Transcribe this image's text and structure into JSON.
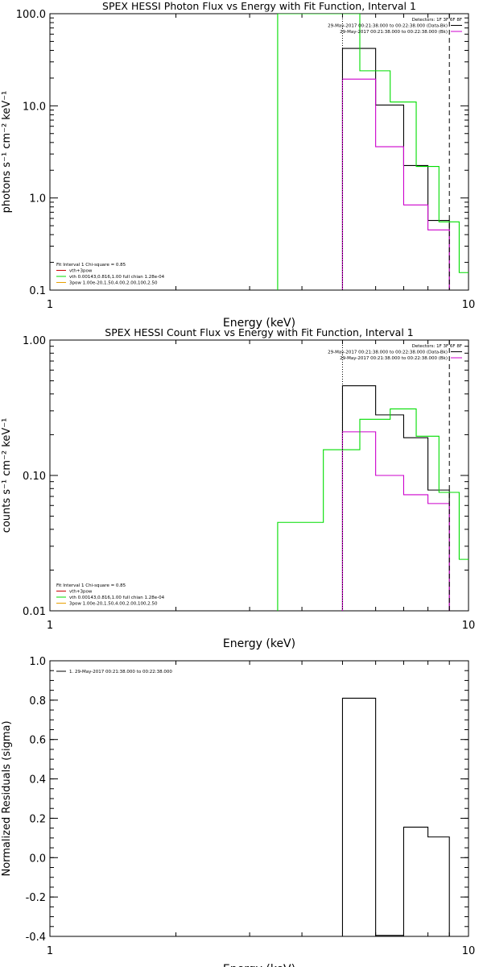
{
  "colors": {
    "axis": "#000000",
    "black": "#000000",
    "green": "#00dd00",
    "magenta": "#cc00cc",
    "orange": "#e8a000",
    "red": "#cc0000"
  },
  "chart_data": [
    {
      "type": "line",
      "title": "SPEX HESSI Photon Flux vs Energy with Fit Function, Interval 1",
      "xlabel": "Energy (keV)",
      "ylabel": "photons s⁻¹ cm⁻² keV⁻¹",
      "xscale": "log",
      "yscale": "log",
      "xlim": [
        1,
        10
      ],
      "ylim": [
        0.1,
        100
      ],
      "xticks": [
        {
          "v": 1,
          "label": "1"
        },
        {
          "v": 10,
          "label": "10"
        }
      ],
      "yticks": [
        {
          "v": 0.1,
          "label": "0.1"
        },
        {
          "v": 1,
          "label": "1.0"
        },
        {
          "v": 10,
          "label": "10.0"
        },
        {
          "v": 100,
          "label": "100.0"
        }
      ],
      "vlines": [
        {
          "x": 5.0,
          "style": "dotted",
          "color": "black"
        },
        {
          "x": 9.0,
          "style": "dashed",
          "color": "black"
        }
      ],
      "legend_right": [
        {
          "text": "Detectors: 1F 3F 6F 8F",
          "color": "black",
          "line": false
        },
        {
          "text": "29-May-2017 00:21:38.000 to 00:22:38.000 (Data-Bk)",
          "color": "black",
          "line": true
        },
        {
          "text": "29-May-2017 00:21:38.000 to 00:22:38.000 (Bk)",
          "color": "magenta",
          "line": true
        }
      ],
      "legend_left": [
        {
          "text": "Fit Interval 1    Chi-square = 0.85",
          "color": "black",
          "line": false
        },
        {
          "text": "vth+3pow",
          "color": "red",
          "line": true
        },
        {
          "text": "vth 0.00143,0.816,1.00   full chian 1.28e-04",
          "color": "green",
          "line": true
        },
        {
          "text": "3pow 1.00e-20,1.50,4.00,2.00,100,2.50",
          "color": "orange",
          "line": true
        }
      ],
      "series": [
        {
          "name": "Data-Bk",
          "color": "black",
          "edges": [
            5.0,
            5.5,
            6.0,
            6.5,
            7.0,
            7.5,
            8.0,
            8.5,
            9.0
          ],
          "values": [
            42,
            42,
            10.2,
            10.2,
            2.25,
            2.25,
            0.57,
            0.57
          ]
        },
        {
          "name": "Bk",
          "color": "magenta",
          "edges": [
            5.0,
            5.5,
            6.0,
            6.5,
            7.0,
            7.5,
            8.0,
            8.5,
            9.0
          ],
          "values": [
            19.5,
            19.5,
            3.6,
            3.6,
            0.84,
            0.84,
            0.45,
            0.45
          ]
        },
        {
          "name": "vth",
          "color": "green",
          "edges": [
            3.5,
            4.0,
            4.5,
            5.0,
            5.5,
            6.0,
            6.5,
            7.0,
            7.5,
            8.0,
            8.5,
            9.0,
            9.5,
            10.0
          ],
          "values": [
            100,
            100,
            100,
            100,
            24,
            24,
            11,
            11,
            2.2,
            2.2,
            0.55,
            0.55,
            0.155,
            0.155
          ]
        }
      ]
    },
    {
      "type": "line",
      "title": "SPEX HESSI Count Flux vs Energy with Fit Function, Interval 1",
      "xlabel": "Energy (keV)",
      "ylabel": "counts s⁻¹ cm⁻² keV⁻¹",
      "xscale": "log",
      "yscale": "log",
      "xlim": [
        1,
        10
      ],
      "ylim": [
        0.01,
        1
      ],
      "xticks": [
        {
          "v": 1,
          "label": "1"
        },
        {
          "v": 10,
          "label": "10"
        }
      ],
      "yticks": [
        {
          "v": 0.01,
          "label": "0.01"
        },
        {
          "v": 0.1,
          "label": "0.10"
        },
        {
          "v": 1,
          "label": "1.00"
        }
      ],
      "vlines": [
        {
          "x": 5.0,
          "style": "dotted",
          "color": "black"
        },
        {
          "x": 9.0,
          "style": "dashed",
          "color": "black"
        }
      ],
      "legend_right": [
        {
          "text": "Detectors: 1F 3F 6F 8F",
          "color": "black",
          "line": false
        },
        {
          "text": "29-May-2017 00:21:38.000 to 00:22:38.000 (Data-Bk)",
          "color": "black",
          "line": true
        },
        {
          "text": "29-May-2017 00:21:38.000 to 00:22:38.000 (Bk)",
          "color": "magenta",
          "line": true
        }
      ],
      "legend_left": [
        {
          "text": "Fit Interval 1    Chi-square = 0.85",
          "color": "black",
          "line": false
        },
        {
          "text": "vth+3pow",
          "color": "red",
          "line": true
        },
        {
          "text": "vth 0.00143,0.816,1.00   full chian 1.28e-04",
          "color": "green",
          "line": true
        },
        {
          "text": "3pow 1.00e-20,1.50,4.00,2.00,100,2.50",
          "color": "orange",
          "line": true
        }
      ],
      "series": [
        {
          "name": "Data-Bk",
          "color": "black",
          "edges": [
            5.0,
            5.5,
            6.0,
            6.5,
            7.0,
            7.5,
            8.0,
            8.5,
            9.0
          ],
          "values": [
            0.46,
            0.46,
            0.28,
            0.28,
            0.19,
            0.19,
            0.078,
            0.078
          ]
        },
        {
          "name": "Bk",
          "color": "magenta",
          "edges": [
            5.0,
            5.5,
            6.0,
            6.5,
            7.0,
            7.5,
            8.0,
            8.5,
            9.0
          ],
          "values": [
            0.21,
            0.21,
            0.1,
            0.1,
            0.072,
            0.072,
            0.062,
            0.062
          ]
        },
        {
          "name": "vth",
          "color": "green",
          "edges": [
            3.5,
            4.0,
            4.5,
            5.0,
            5.5,
            6.0,
            6.5,
            7.0,
            7.5,
            8.0,
            8.5,
            9.0,
            9.5,
            10.0
          ],
          "values": [
            0.045,
            0.045,
            0.155,
            0.155,
            0.26,
            0.26,
            0.31,
            0.31,
            0.195,
            0.195,
            0.075,
            0.075,
            0.024,
            0.024
          ]
        }
      ]
    },
    {
      "type": "line",
      "title": "",
      "xlabel": "Energy (keV)",
      "ylabel": "Normalized Residuals (sigma)",
      "xscale": "log",
      "yscale": "linear",
      "xlim": [
        1,
        10
      ],
      "ylim": [
        -0.4,
        1.0
      ],
      "xticks": [
        {
          "v": 1,
          "label": "1"
        },
        {
          "v": 10,
          "label": "10"
        }
      ],
      "yticks": [
        {
          "v": -0.4,
          "label": "-0.4"
        },
        {
          "v": -0.2,
          "label": "-0.2"
        },
        {
          "v": 0,
          "label": "0.0"
        },
        {
          "v": 0.2,
          "label": "0.2"
        },
        {
          "v": 0.4,
          "label": "0.4"
        },
        {
          "v": 0.6,
          "label": "0.6"
        },
        {
          "v": 0.8,
          "label": "0.8"
        },
        {
          "v": 1.0,
          "label": "1.0"
        }
      ],
      "vlines": [],
      "legend_right": [],
      "legend_left": [
        {
          "text": "1. 29-May-2017 00:21:38.000 to 00:22:38.000",
          "color": "black",
          "line": true
        }
      ],
      "series": [
        {
          "name": "",
          "color": "black",
          "edges": [
            5.0,
            5.5,
            6.0,
            6.5,
            7.0,
            7.5,
            8.0,
            8.5,
            9.0
          ],
          "values": [
            0.81,
            0.81,
            -0.395,
            -0.395,
            0.155,
            0.155,
            0.105,
            0.105
          ]
        }
      ]
    }
  ]
}
